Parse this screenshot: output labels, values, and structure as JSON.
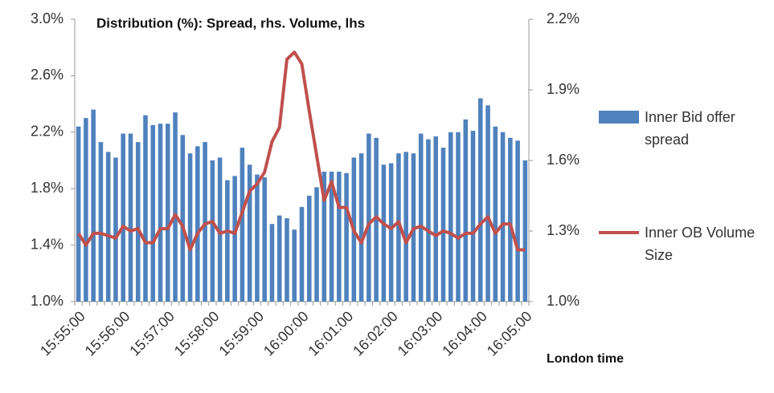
{
  "chart_data": {
    "type": "bar_line",
    "title": "Distribution (%): Spread, rhs. Volume, lhs",
    "x_label": "London time",
    "categories": [
      "15:55:00",
      null,
      null,
      null,
      null,
      null,
      "15:56:00",
      null,
      null,
      null,
      null,
      null,
      "15:57:00",
      null,
      null,
      null,
      null,
      null,
      "15:58:00",
      null,
      null,
      null,
      null,
      null,
      "15:59:00",
      null,
      null,
      null,
      null,
      null,
      "16:00:00",
      null,
      null,
      null,
      null,
      null,
      "16:01:00",
      null,
      null,
      null,
      null,
      null,
      "16:02:00",
      null,
      null,
      null,
      null,
      null,
      "16:03:00",
      null,
      null,
      null,
      null,
      null,
      "16:04:00",
      null,
      null,
      null,
      null,
      null,
      "16:05:00"
    ],
    "series": [
      {
        "name": "Inner Bid offer spread",
        "type": "bar",
        "color": "#4f81bd",
        "axis": "y",
        "values": [
          2.24,
          2.3,
          2.36,
          2.13,
          2.06,
          2.02,
          2.19,
          2.19,
          2.13,
          2.32,
          2.25,
          2.26,
          2.26,
          2.34,
          2.18,
          2.05,
          2.1,
          2.13,
          2.0,
          2.02,
          1.86,
          1.89,
          2.09,
          1.97,
          1.9,
          1.88,
          1.55,
          1.61,
          1.59,
          1.51,
          1.67,
          1.75,
          1.81,
          1.92,
          1.92,
          1.92,
          1.91,
          2.02,
          2.05,
          2.19,
          2.16,
          1.97,
          1.98,
          2.05,
          2.06,
          2.05,
          2.19,
          2.15,
          2.17,
          2.09,
          2.2,
          2.2,
          2.29,
          2.21,
          2.44,
          2.39,
          2.24,
          2.2,
          2.16,
          2.14,
          2.0
        ]
      },
      {
        "name": "Inner OB Volume Size",
        "type": "line",
        "color": "#c0504d",
        "axis": "y2",
        "values": [
          1.29,
          1.24,
          1.29,
          1.29,
          1.28,
          1.27,
          1.32,
          1.3,
          1.31,
          1.25,
          1.25,
          1.31,
          1.31,
          1.37,
          1.32,
          1.22,
          1.29,
          1.33,
          1.34,
          1.29,
          1.3,
          1.29,
          1.38,
          1.47,
          1.5,
          1.55,
          1.68,
          1.74,
          2.03,
          2.06,
          2.01,
          1.81,
          1.62,
          1.43,
          1.51,
          1.4,
          1.4,
          1.3,
          1.25,
          1.33,
          1.36,
          1.33,
          1.31,
          1.34,
          1.25,
          1.31,
          1.32,
          1.3,
          1.28,
          1.3,
          1.29,
          1.27,
          1.29,
          1.29,
          1.33,
          1.36,
          1.29,
          1.33,
          1.33,
          1.22,
          1.22
        ]
      }
    ],
    "ylim": [
      1.0,
      3.0
    ],
    "yticks": [
      {
        "value": 1.0,
        "label": "1.0%"
      },
      {
        "value": 1.4,
        "label": "1.4%"
      },
      {
        "value": 1.8,
        "label": "1.8%"
      },
      {
        "value": 2.2,
        "label": "2.2%"
      },
      {
        "value": 2.6,
        "label": "2.6%"
      },
      {
        "value": 3.0,
        "label": "3.0%"
      }
    ],
    "y2lim": [
      1.0,
      2.2
    ],
    "y2ticks": [
      {
        "value": 1.0,
        "label": "1.0%"
      },
      {
        "value": 1.3,
        "label": "1.3%"
      },
      {
        "value": 1.6,
        "label": "1.6%"
      },
      {
        "value": 1.9,
        "label": "1.9%"
      },
      {
        "value": 2.2,
        "label": "2.2%"
      }
    ],
    "grid": false,
    "legend": "right"
  }
}
